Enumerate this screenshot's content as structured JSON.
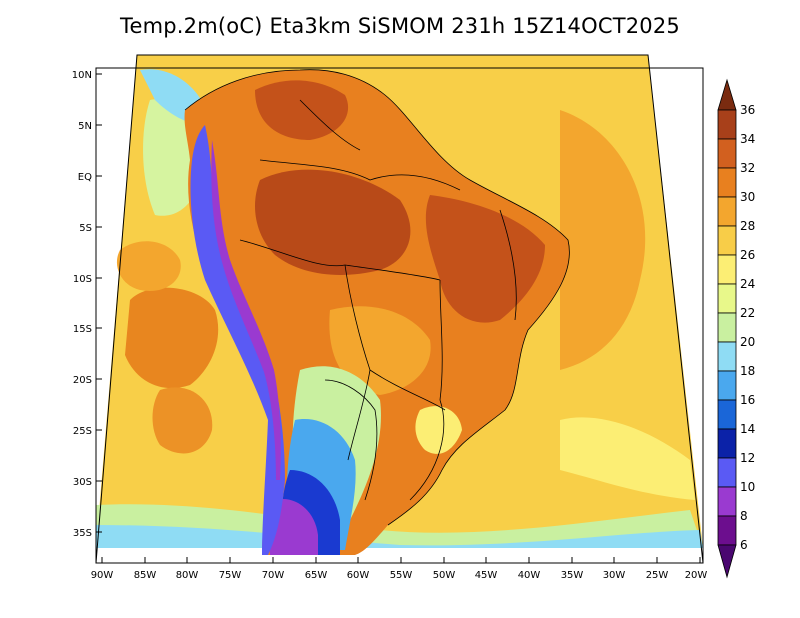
{
  "title": "Temp.2m(oC) Eta3km SiSMOM 231h 15Z14OCT2025",
  "axes": {
    "lat_labels": [
      "10N",
      "5N",
      "EQ",
      "5S",
      "10S",
      "15S",
      "20S",
      "25S",
      "30S",
      "35S"
    ],
    "lon_labels": [
      "90W",
      "85W",
      "80W",
      "75W",
      "70W",
      "65W",
      "60W",
      "55W",
      "50W",
      "45W",
      "40W",
      "35W",
      "30W",
      "25W",
      "20W"
    ]
  },
  "colorbar": {
    "labels": [
      "36",
      "34",
      "32",
      "30",
      "28",
      "26",
      "24",
      "22",
      "20",
      "18",
      "16",
      "14",
      "12",
      "10",
      "8",
      "6"
    ],
    "colors": [
      "#7a2b10",
      "#a8401a",
      "#d2601f",
      "#e8801f",
      "#f3a62e",
      "#f8cd48",
      "#fcee74",
      "#e8f88a",
      "#c9f0a0",
      "#8fdcf4",
      "#4aa8ee",
      "#1a66d8",
      "#0b22a8",
      "#5a5af4",
      "#9a3ad0",
      "#6c0e8e",
      "#4a0770"
    ]
  }
}
